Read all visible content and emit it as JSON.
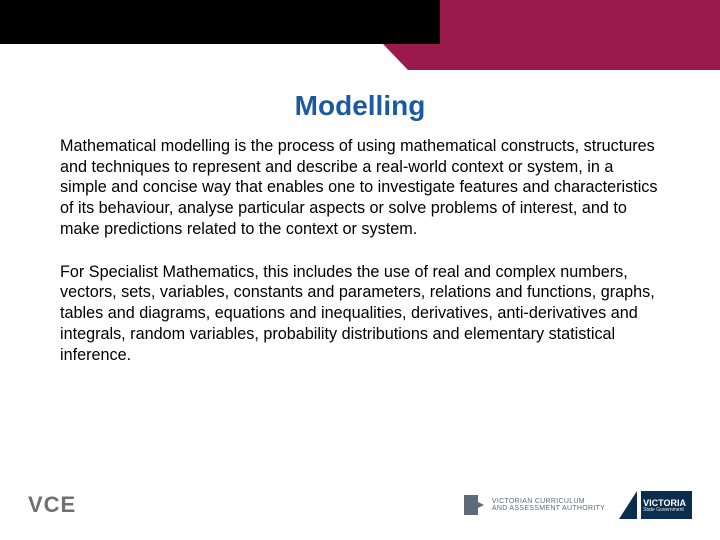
{
  "colors": {
    "header_black": "#000000",
    "header_maroon": "#9a1a4e",
    "title_blue": "#1a5a9e",
    "body_text": "#000000",
    "footer_grey": "#707070",
    "vic_navy": "#0b2e4e",
    "vcaa_grey": "#5f6a78",
    "background": "#ffffff"
  },
  "title": "Modelling",
  "paragraphs": {
    "p1": "Mathematical modelling is the process of using mathematical constructs, structures and techniques to represent and describe a real-world context or system, in a simple and concise way that enables one to investigate features and characteristics of its behaviour, analyse particular aspects or solve problems of interest, and to make predictions related to the context or system.",
    "p2": "For Specialist Mathematics, this includes the use of real and complex numbers, vectors, sets, variables, constants and parameters, relations and functions, graphs, tables and diagrams, equations and inequalities, derivatives, anti-derivatives and integrals, random variables, probability distributions and elementary statistical inference."
  },
  "footer": {
    "vce": "VCE",
    "vcaa_line1": "Victorian Curriculum",
    "vcaa_line2": "and Assessment Authority",
    "vic_label": "VICTORIA",
    "vic_sub": "State Government"
  },
  "typography": {
    "title_fontsize": 28,
    "body_fontsize": 16.2,
    "body_lineheight": 1.28
  }
}
